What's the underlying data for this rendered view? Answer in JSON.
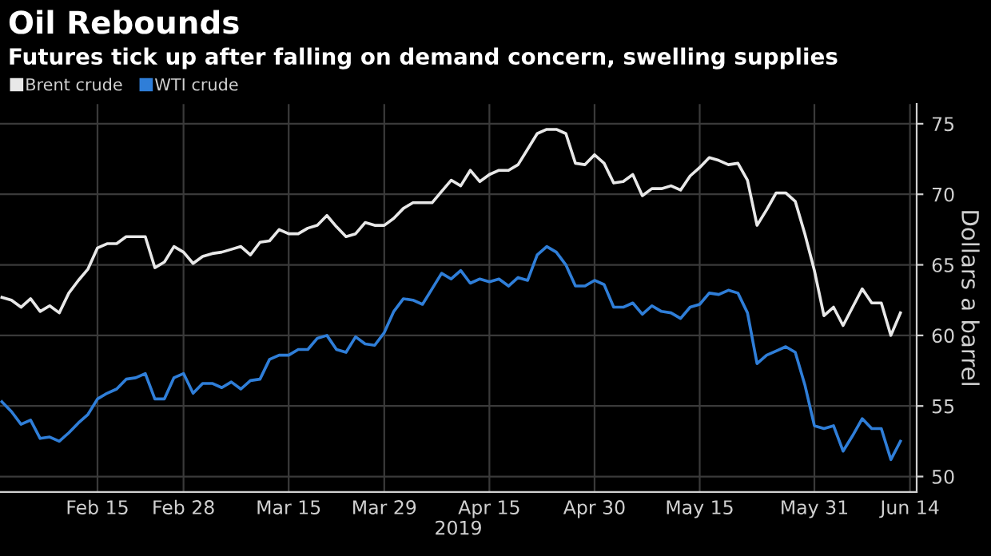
{
  "chart_data": {
    "type": "line",
    "title": "Oil Rebounds",
    "subtitle": "Futures tick up after falling on demand concern, swelling supplies",
    "xlabel": "2019",
    "ylabel": "Dollars a barrel",
    "categories": [
      null,
      null,
      null,
      null,
      null,
      null,
      null,
      null,
      null,
      null,
      "Feb 15",
      null,
      null,
      null,
      null,
      null,
      null,
      null,
      null,
      "Feb 28",
      null,
      null,
      null,
      null,
      null,
      null,
      null,
      null,
      null,
      null,
      "Mar 15",
      null,
      null,
      null,
      null,
      null,
      null,
      null,
      null,
      null,
      "Mar 29",
      null,
      null,
      null,
      null,
      null,
      null,
      null,
      null,
      null,
      null,
      "Apr 15",
      null,
      null,
      null,
      null,
      null,
      null,
      null,
      null,
      null,
      null,
      "Apr 30",
      null,
      null,
      null,
      null,
      null,
      null,
      null,
      null,
      null,
      null,
      "May 15",
      null,
      null,
      null,
      null,
      null,
      null,
      null,
      null,
      null,
      null,
      null,
      "May 31",
      null,
      null,
      null,
      null,
      null,
      null,
      null,
      null,
      null,
      "Jun 14"
    ],
    "series": [
      {
        "name": "Brent crude",
        "color": "#e8e8e8",
        "values": [
          62.7,
          62.5,
          62.0,
          62.6,
          61.7,
          62.1,
          61.6,
          63.0,
          63.9,
          64.7,
          66.2,
          66.5,
          66.5,
          67.0,
          67.0,
          67.0,
          64.8,
          65.2,
          66.3,
          65.9,
          65.1,
          65.6,
          65.8,
          65.9,
          66.1,
          66.3,
          65.7,
          66.6,
          66.7,
          67.5,
          67.2,
          67.2,
          67.6,
          67.8,
          68.5,
          67.7,
          67.0,
          67.2,
          68.0,
          67.8,
          67.8,
          68.3,
          69.0,
          69.4,
          69.4,
          69.4,
          70.2,
          71.0,
          70.6,
          71.7,
          70.9,
          71.4,
          71.7,
          71.7,
          72.1,
          73.2,
          74.3,
          74.6,
          74.6,
          74.3,
          72.2,
          72.1,
          72.8,
          72.2,
          70.8,
          70.9,
          71.4,
          69.9,
          70.4,
          70.4,
          70.6,
          70.3,
          71.3,
          71.9,
          72.6,
          72.4,
          72.1,
          72.2,
          71.0,
          67.8,
          68.9,
          70.1,
          70.1,
          69.5,
          67.2,
          64.6,
          61.4,
          62.0,
          60.7,
          62.0,
          63.3,
          62.3,
          62.3,
          60.0,
          61.6,
          null
        ]
      },
      {
        "name": "WTI crude",
        "color": "#2f7ed8",
        "values": [
          55.3,
          54.6,
          53.7,
          54.0,
          52.7,
          52.8,
          52.5,
          53.1,
          53.8,
          54.4,
          55.5,
          55.9,
          56.2,
          56.9,
          57.0,
          57.3,
          55.5,
          55.5,
          57.0,
          57.3,
          55.9,
          56.6,
          56.6,
          56.3,
          56.7,
          56.2,
          56.8,
          56.9,
          58.3,
          58.6,
          58.6,
          59.0,
          59.0,
          59.8,
          60.0,
          59.0,
          58.8,
          59.9,
          59.4,
          59.3,
          60.2,
          61.7,
          62.6,
          62.5,
          62.2,
          63.3,
          64.4,
          64.0,
          64.6,
          63.7,
          64.0,
          63.8,
          64.0,
          63.5,
          64.1,
          63.9,
          65.7,
          66.3,
          65.9,
          65.0,
          63.5,
          63.5,
          63.9,
          63.6,
          62.0,
          62.0,
          62.3,
          61.5,
          62.1,
          61.7,
          61.6,
          61.2,
          62.0,
          62.2,
          63.0,
          62.9,
          63.2,
          63.0,
          61.6,
          58.0,
          58.6,
          58.9,
          59.2,
          58.8,
          56.5,
          53.6,
          53.4,
          53.6,
          51.8,
          52.9,
          54.1,
          53.4,
          53.4,
          51.2,
          52.5,
          null
        ]
      }
    ],
    "ylim": [
      48.9,
      76.4
    ],
    "yticks": [
      50,
      55,
      60,
      65,
      70,
      75
    ],
    "grid": true,
    "legend": "top left"
  }
}
